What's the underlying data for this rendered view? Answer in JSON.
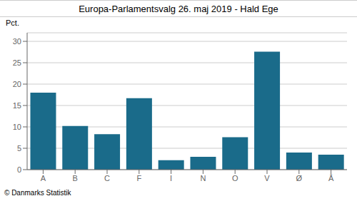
{
  "chart_data": {
    "type": "bar",
    "title": "Europa-Parlamentsvalg 26. maj 2019 - Hald Ege",
    "ylabel": "Pct.",
    "annotations": [
      "© Danmarks Statistik"
    ],
    "categories": [
      "A",
      "B",
      "C",
      "F",
      "I",
      "N",
      "O",
      "V",
      "Ø",
      "Å"
    ],
    "values": [
      18.0,
      10.2,
      8.3,
      16.7,
      2.2,
      3.0,
      7.6,
      27.6,
      4.0,
      3.5
    ],
    "color": "#1a6b8a",
    "ylim": [
      0,
      32
    ],
    "yticks": [
      0,
      5,
      10,
      15,
      20,
      25,
      30
    ],
    "grid": true
  }
}
